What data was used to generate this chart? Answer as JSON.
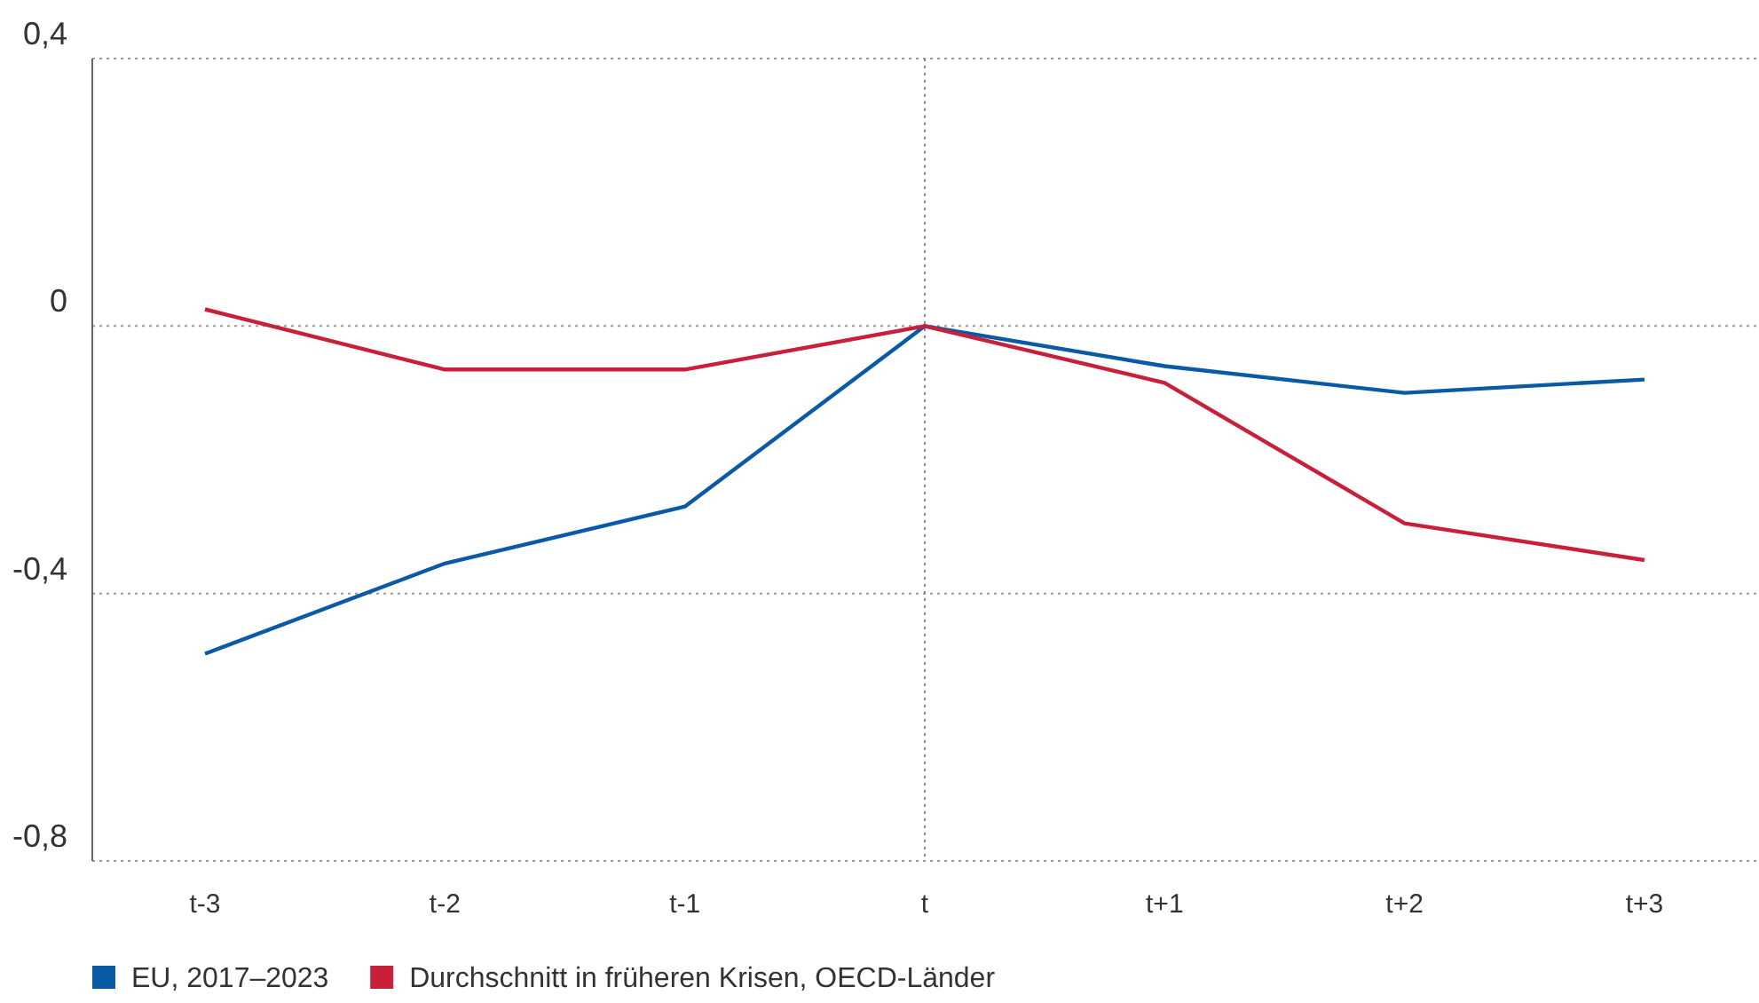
{
  "chart_data": {
    "type": "line",
    "categories": [
      "t-3",
      "t-2",
      "t-1",
      "t",
      "t+1",
      "t+2",
      "t+3"
    ],
    "series": [
      {
        "name": "EU, 2017–2023",
        "color": "#0a5aa6",
        "values": [
          -0.49,
          -0.355,
          -0.27,
          0,
          -0.06,
          -0.1,
          -0.08
        ]
      },
      {
        "name": "Durchschnitt in früheren Krisen, OECD-Länder",
        "color": "#c8203a",
        "values": [
          0.025,
          -0.065,
          -0.065,
          0,
          -0.085,
          -0.295,
          -0.35
        ]
      }
    ],
    "ylim": [
      -0.8,
      0.4
    ],
    "yticks": [
      {
        "value": -0.8,
        "label": "-0,8"
      },
      {
        "value": -0.4,
        "label": "-0,4"
      },
      {
        "value": 0,
        "label": "0"
      },
      {
        "value": 0.4,
        "label": "0,4"
      }
    ],
    "grid": "y",
    "legend": "bottom",
    "marker": "none",
    "line_style": "solid",
    "ref_lines": [
      {
        "axis": "x",
        "value": "t",
        "color": "#888888",
        "line_style": "dotted"
      }
    ]
  }
}
